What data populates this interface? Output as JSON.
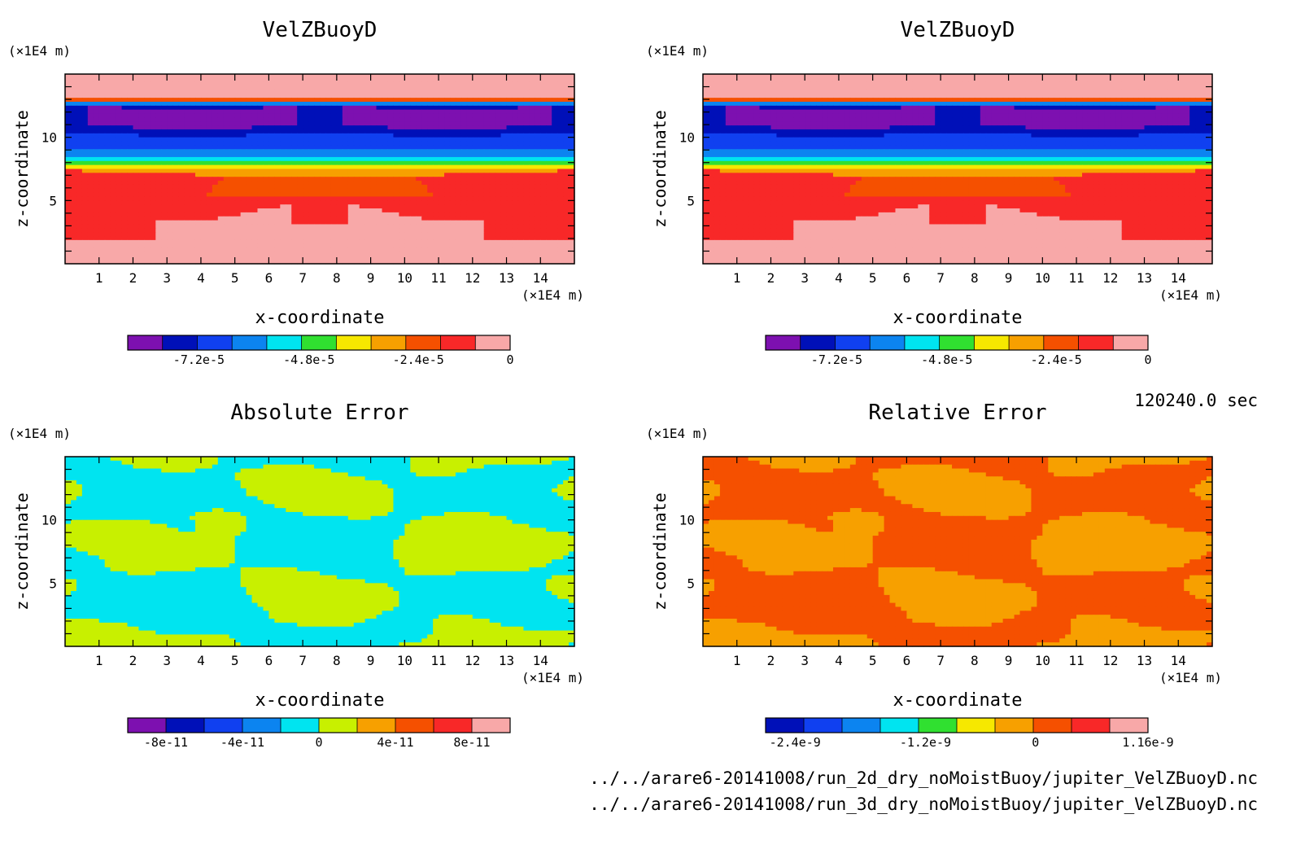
{
  "timestamp": "120240.0 sec",
  "files": [
    "../../arare6-20141008/run_2d_dry_noMoistBuoy/jupiter_VelZBuoyD.nc",
    "../../arare6-20141008/run_3d_dry_noMoistBuoy/jupiter_VelZBuoyD.nc"
  ],
  "chart_data": [
    {
      "type": "heatmap",
      "id": "p1",
      "title": "VelZBuoyD",
      "xlabel": "x-coordinate",
      "ylabel": "z-coordinate",
      "x_unit": "(×1E4 m)",
      "y_unit": "(×1E4 m)",
      "xlim": [
        0,
        15
      ],
      "ylim": [
        0,
        15
      ],
      "xticks": [
        1,
        2,
        3,
        4,
        5,
        6,
        7,
        8,
        9,
        10,
        11,
        12,
        13,
        14
      ],
      "yticks": [
        5,
        10
      ],
      "pattern": "velz",
      "colors": [
        "#7d10b0",
        "#0010b8",
        "#1040f0",
        "#0c84f0",
        "#00e4f0",
        "#30e030",
        "#f6e800",
        "#f7a000",
        "#f55000",
        "#f82828",
        "#f8a8a8"
      ],
      "colorbar_labels": [
        {
          "label": "-7.2e-5",
          "pos": 0.186
        },
        {
          "label": "-4.8e-5",
          "pos": 0.474
        },
        {
          "label": "-2.4e-5",
          "pos": 0.76
        },
        {
          "label": "0",
          "pos": 1.0
        }
      ]
    },
    {
      "type": "heatmap",
      "id": "p2",
      "title": "VelZBuoyD",
      "xlabel": "x-coordinate",
      "ylabel": "z-coordinate",
      "x_unit": "(×1E4 m)",
      "y_unit": "(×1E4 m)",
      "xlim": [
        0,
        15
      ],
      "ylim": [
        0,
        15
      ],
      "xticks": [
        1,
        2,
        3,
        4,
        5,
        6,
        7,
        8,
        9,
        10,
        11,
        12,
        13,
        14
      ],
      "yticks": [
        5,
        10
      ],
      "pattern": "velz",
      "colors": [
        "#7d10b0",
        "#0010b8",
        "#1040f0",
        "#0c84f0",
        "#00e4f0",
        "#30e030",
        "#f6e800",
        "#f7a000",
        "#f55000",
        "#f82828",
        "#f8a8a8"
      ],
      "colorbar_labels": [
        {
          "label": "-7.2e-5",
          "pos": 0.186
        },
        {
          "label": "-4.8e-5",
          "pos": 0.474
        },
        {
          "label": "-2.4e-5",
          "pos": 0.76
        },
        {
          "label": "0",
          "pos": 1.0
        }
      ]
    },
    {
      "type": "heatmap",
      "id": "p3",
      "title": "Absolute Error",
      "xlabel": "x-coordinate",
      "ylabel": "z-coordinate",
      "x_unit": "(×1E4 m)",
      "y_unit": "(×1E4 m)",
      "xlim": [
        0,
        15
      ],
      "ylim": [
        0,
        15
      ],
      "xticks": [
        1,
        2,
        3,
        4,
        5,
        6,
        7,
        8,
        9,
        10,
        11,
        12,
        13,
        14
      ],
      "yticks": [
        5,
        10
      ],
      "pattern": "abs",
      "colors": [
        "#7d10b0",
        "#0010b8",
        "#1040f0",
        "#0c84f0",
        "#00e4f0",
        "#c8f000",
        "#f7a000",
        "#f55000",
        "#f82828",
        "#f8a8a8"
      ],
      "colorbar_labels": [
        {
          "label": "-8e-11",
          "pos": 0.1
        },
        {
          "label": "-4e-11",
          "pos": 0.3
        },
        {
          "label": "0",
          "pos": 0.5
        },
        {
          "label": "4e-11",
          "pos": 0.7
        },
        {
          "label": "8e-11",
          "pos": 0.9
        }
      ]
    },
    {
      "type": "heatmap",
      "id": "p4",
      "title": "Relative Error",
      "xlabel": "x-coordinate",
      "ylabel": "z-coordinate",
      "x_unit": "(×1E4 m)",
      "y_unit": "(×1E4 m)",
      "xlim": [
        0,
        15
      ],
      "ylim": [
        0,
        15
      ],
      "xticks": [
        1,
        2,
        3,
        4,
        5,
        6,
        7,
        8,
        9,
        10,
        11,
        12,
        13,
        14
      ],
      "yticks": [
        5,
        10
      ],
      "pattern": "rel",
      "colors": [
        "#0010b8",
        "#1040f0",
        "#0c84f0",
        "#00e4f0",
        "#30e030",
        "#f6e800",
        "#f7a000",
        "#f55000",
        "#f82828",
        "#f8a8a8"
      ],
      "colorbar_labels": [
        {
          "label": "-2.4e-9",
          "pos": 0.077
        },
        {
          "label": "-1.2e-9",
          "pos": 0.418
        },
        {
          "label": "0",
          "pos": 0.706
        },
        {
          "label": "1.16e-9",
          "pos": 1.0
        }
      ]
    }
  ]
}
